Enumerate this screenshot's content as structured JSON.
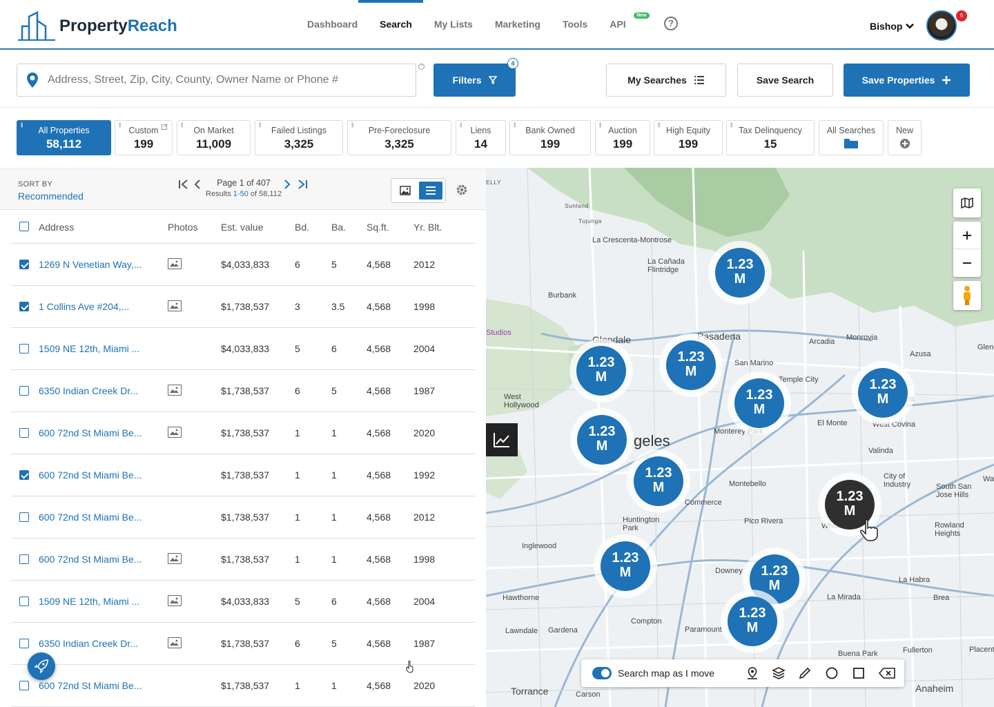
{
  "brand": {
    "name_part1": "Property",
    "name_part2": "Reach"
  },
  "nav": {
    "items": [
      {
        "label": "Dashboard"
      },
      {
        "label": "Search"
      },
      {
        "label": "My Lists"
      },
      {
        "label": "Marketing"
      },
      {
        "label": "Tools"
      },
      {
        "label": "API"
      }
    ],
    "api_badge": "New",
    "help": "?"
  },
  "user": {
    "name": "Bishop",
    "notifications": "6"
  },
  "search": {
    "placeholder": "Address, Street, Zip, City, County, Owner Name or Phone #"
  },
  "actions": {
    "filters": "Filters",
    "filters_count": "4",
    "my_searches": "My Searches",
    "save_search": "Save Search",
    "save_properties": "Save Properties"
  },
  "categories": [
    {
      "label": "All Properties",
      "count": "58,112"
    },
    {
      "label": "Custom",
      "count": "199"
    },
    {
      "label": "On Market",
      "count": "11,009"
    },
    {
      "label": "Failed Listings",
      "count": "3,325"
    },
    {
      "label": "Pre-Foreclosure",
      "count": "3,325"
    },
    {
      "label": "Liens",
      "count": "14"
    },
    {
      "label": "Bank Owned",
      "count": "199"
    },
    {
      "label": "Auction",
      "count": "199"
    },
    {
      "label": "High Equity",
      "count": "199"
    },
    {
      "label": "Tax Delinquency",
      "count": "15"
    },
    {
      "label": "All Searches"
    },
    {
      "label": "New"
    }
  ],
  "results": {
    "sort_label": "SORT BY",
    "sort_value": "Recommended",
    "page_text": "Page 1 of 407",
    "results_prefix": "Results ",
    "results_range": "1-50",
    "results_suffix": " of 58,112"
  },
  "table": {
    "headers": [
      "Address",
      "Photos",
      "Est. value",
      "Bd.",
      "Ba.",
      "Sq.ft.",
      "Yr. Blt."
    ],
    "rows": [
      {
        "checked": true,
        "address": "1269 N Venetian Way,...",
        "photo": true,
        "value": "$4,033,833",
        "bd": "6",
        "ba": "5",
        "sqft": "4,568",
        "yr": "2012"
      },
      {
        "checked": true,
        "address": "1 Collins Ave #204,...",
        "photo": true,
        "value": "$1,738,537",
        "bd": "3",
        "ba": "3.5",
        "sqft": "4,568",
        "yr": "1998"
      },
      {
        "checked": false,
        "address": "1509 NE 12th, Miami ...",
        "photo": false,
        "value": "$4,033,833",
        "bd": "5",
        "ba": "6",
        "sqft": "4,568",
        "yr": "2004"
      },
      {
        "checked": false,
        "address": "6350 Indian Creek Dr...",
        "photo": true,
        "value": "$1,738,537",
        "bd": "6",
        "ba": "5",
        "sqft": "4,568",
        "yr": "1987"
      },
      {
        "checked": false,
        "address": "600 72nd St Miami Be...",
        "photo": true,
        "value": "$1,738,537",
        "bd": "1",
        "ba": "1",
        "sqft": "4,568",
        "yr": "2020"
      },
      {
        "checked": true,
        "address": "600 72nd St Miami Be...",
        "photo": false,
        "value": "$1,738,537",
        "bd": "1",
        "ba": "1",
        "sqft": "4,568",
        "yr": "1992"
      },
      {
        "checked": false,
        "address": "600 72nd St Miami Be...",
        "photo": false,
        "value": "$1,738,537",
        "bd": "1",
        "ba": "1",
        "sqft": "4,568",
        "yr": "2012"
      },
      {
        "checked": false,
        "address": "600 72nd St Miami Be...",
        "photo": true,
        "value": "$1,738,537",
        "bd": "1",
        "ba": "1",
        "sqft": "4,568",
        "yr": "1998"
      },
      {
        "checked": false,
        "address": "1509 NE 12th, Miami ...",
        "photo": true,
        "value": "$4,033,833",
        "bd": "5",
        "ba": "6",
        "sqft": "4,568",
        "yr": "2004"
      },
      {
        "checked": false,
        "address": "6350 Indian Creek Dr...",
        "photo": true,
        "value": "$1,738,537",
        "bd": "6",
        "ba": "5",
        "sqft": "4,568",
        "yr": "1987"
      },
      {
        "checked": false,
        "address": "600 72nd St Miami Be...",
        "photo": false,
        "value": "$1,738,537",
        "bd": "1",
        "ba": "1",
        "sqft": "4,568",
        "yr": "2020"
      }
    ]
  },
  "map": {
    "cluster_value": "1.23",
    "cluster_unit": "M",
    "clusters": [
      {
        "dark": false
      },
      {
        "dark": false
      },
      {
        "dark": false
      },
      {
        "dark": false
      },
      {
        "dark": false
      },
      {
        "dark": false
      },
      {
        "dark": false
      },
      {
        "dark": true
      },
      {
        "dark": false
      },
      {
        "dark": false
      },
      {
        "dark": false
      }
    ],
    "places": [
      "Tujunga",
      "La Crescenta-Montrose",
      "La Cañada Flintridge",
      "Burbank",
      "Glendale",
      "Pasadena",
      "Arcadia",
      "Monrovia",
      "San Marino",
      "Temple City",
      "Azusa",
      "Covina",
      "West Hollywood",
      "geles",
      "Monterey Park",
      "El Monte",
      "West Covina",
      "Valinda",
      "Montebello",
      "City of Industry",
      "Commerce",
      "Pico Rivera",
      "Huntington Park",
      "Whittier",
      "Rowland Heights",
      "Inglewood",
      "Downey",
      "La Habra",
      "Hawthorne",
      "La Mirada",
      "Brea",
      "Compton",
      "Paramount",
      "Lawndale",
      "Gardena",
      "Torrance",
      "Carson",
      "Buena Park",
      "Fullerton",
      "Anaheim",
      "Glendora",
      "Walnut",
      "Sunland",
      "Placentia",
      "South San Jose Hills",
      "Studios",
      "ELLY"
    ],
    "search_as_move": "Search map as I move"
  },
  "colors": {
    "primary": "#1e72b5",
    "dark_cluster": "#2f2f2f",
    "badge_red": "#e3222c",
    "badge_green": "#3dba6b"
  }
}
